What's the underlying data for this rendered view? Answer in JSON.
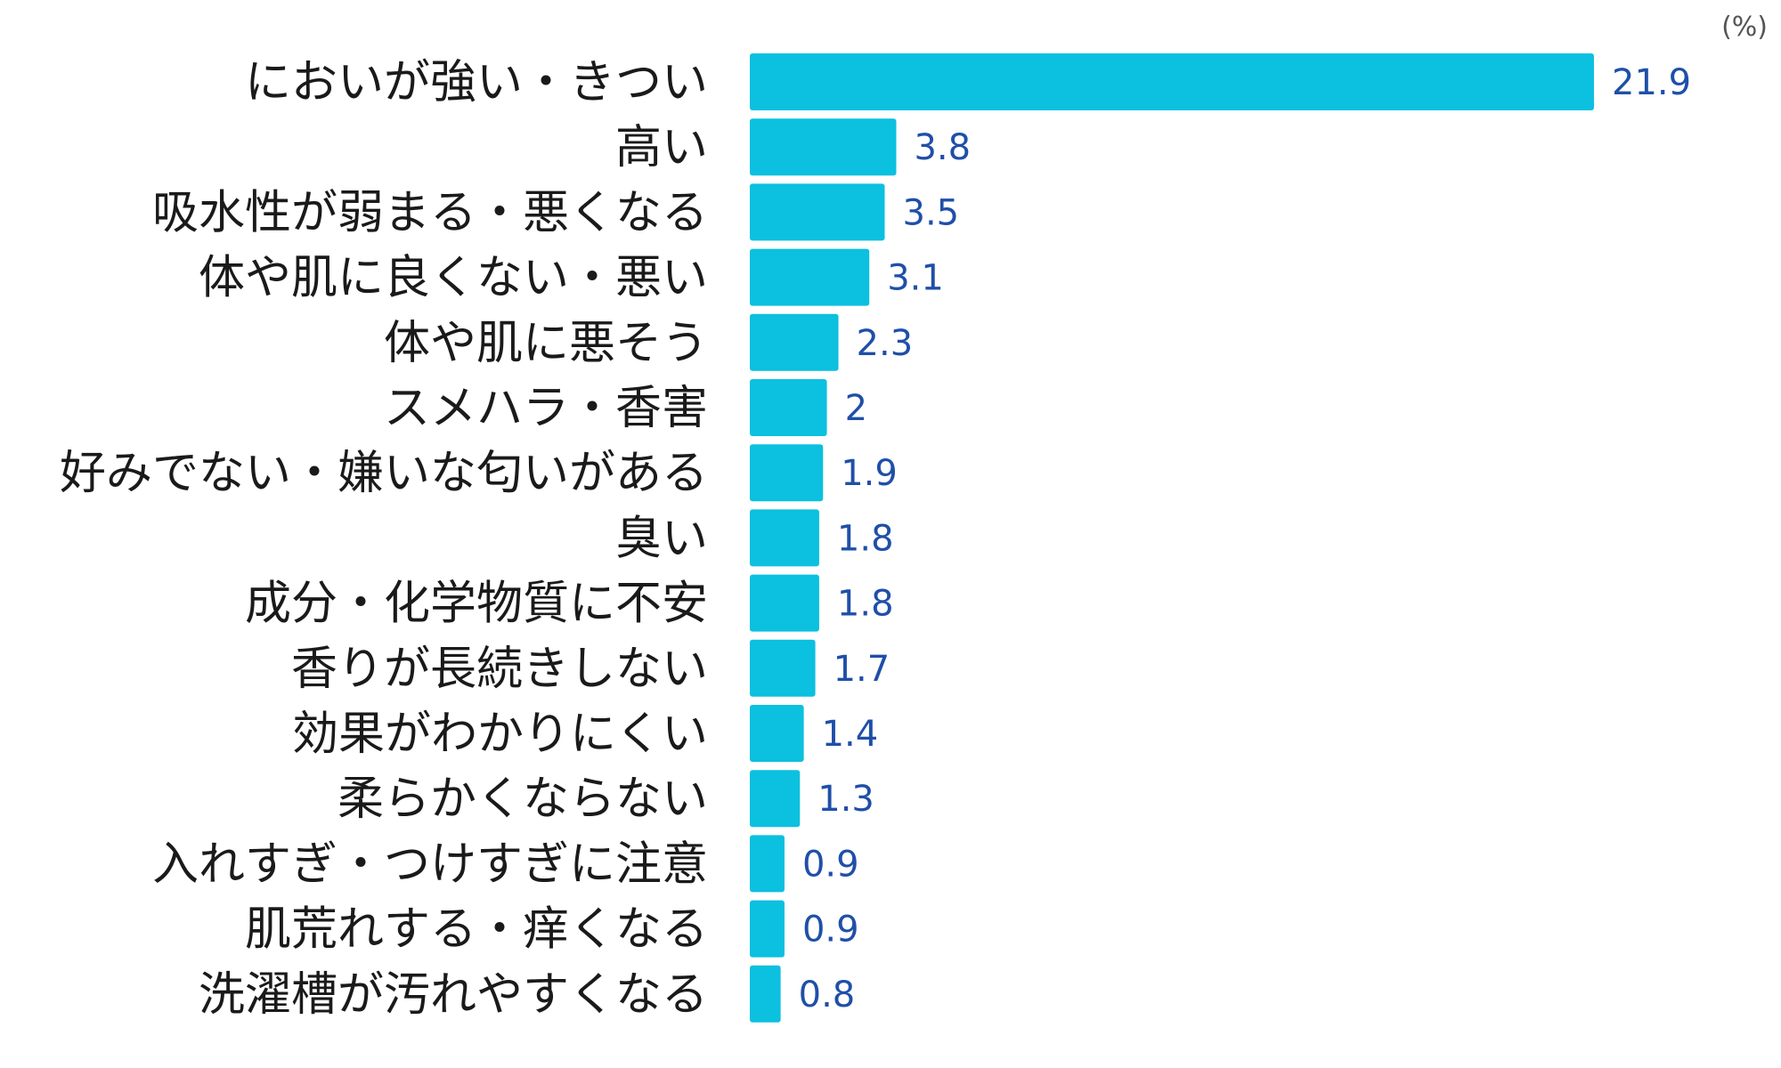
{
  "chart_data": {
    "type": "bar",
    "orientation": "horizontal",
    "unit": "(%)",
    "categories": [
      "においが強い・きつい",
      "高い",
      "吸水性が弱まる・悪くなる",
      "体や肌に良くない・悪い",
      "体や肌に悪そう",
      "スメハラ・香害",
      "好みでない・嫌いな匂いがある",
      "臭い",
      "成分・化学物質に不安",
      "香りが長続きしない",
      "効果がわかりにくい",
      "柔らかくならない",
      "入れすぎ・つけすぎに注意",
      "肌荒れする・痒くなる",
      "洗濯槽が汚れやすくなる"
    ],
    "values": [
      21.9,
      3.8,
      3.5,
      3.1,
      2.3,
      2,
      1.9,
      1.8,
      1.8,
      1.7,
      1.4,
      1.3,
      0.9,
      0.9,
      0.8
    ],
    "value_labels": [
      "21.9",
      "3.8",
      "3.5",
      "3.1",
      "2.3",
      "2",
      "1.9",
      "1.8",
      "1.8",
      "1.7",
      "1.4",
      "1.3",
      "0.9",
      "0.9",
      "0.8"
    ],
    "xlim": [
      0,
      21.9
    ],
    "grid": false,
    "colors": {
      "bar": "#0cc0df",
      "value_text": "#1f4fa8",
      "label_text": "#1a1a1a"
    }
  }
}
